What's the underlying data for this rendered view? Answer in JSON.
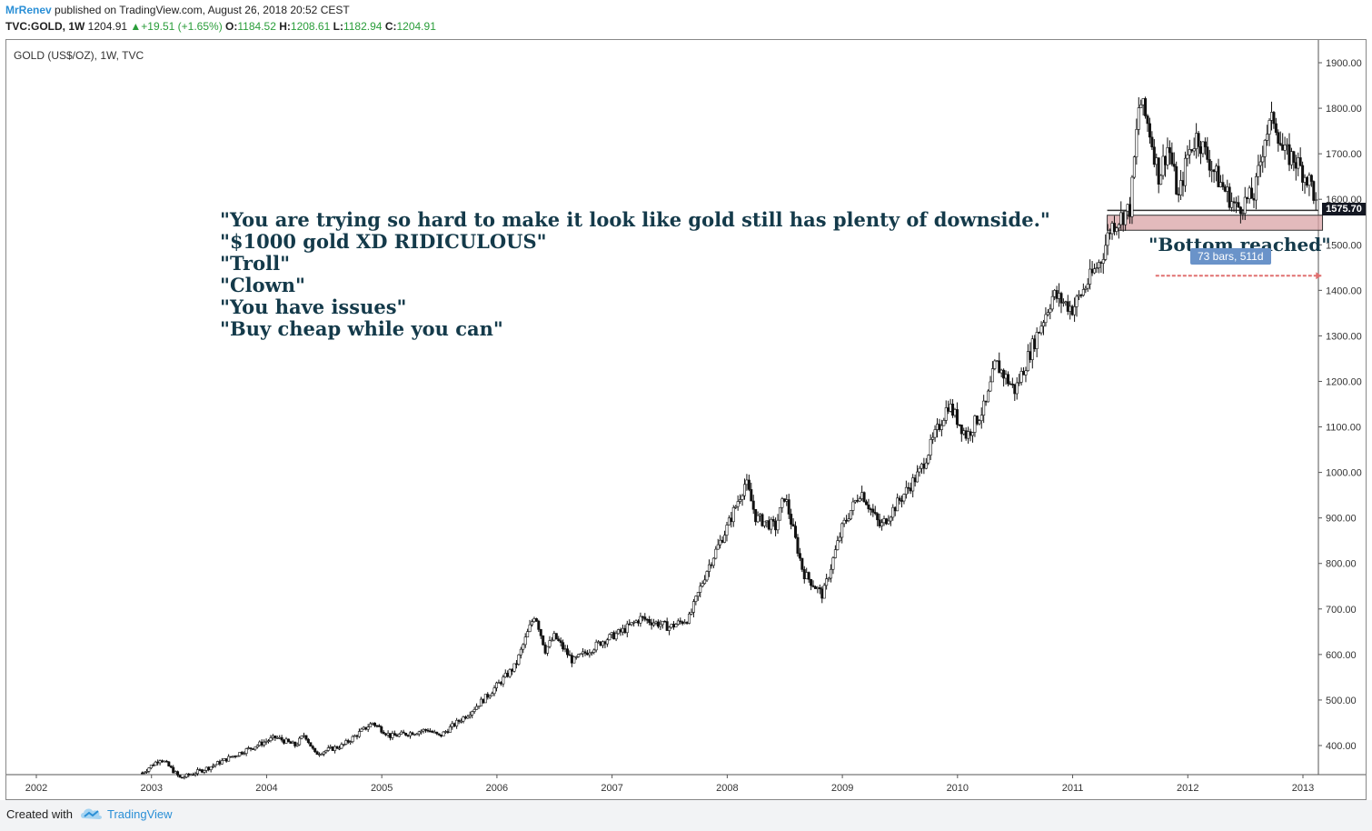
{
  "header": {
    "user": "MrRenev",
    "published": "published on TradingView.com, August 26, 2018 20:52 CEST",
    "symbol": "TVC:GOLD, 1W",
    "last": "1204.91",
    "change": "+19.51 (+1.65%)",
    "o_label": "O:",
    "o_value": "1184.52",
    "h_label": "H:",
    "h_value": "1208.61",
    "l_label": "L:",
    "l_value": "1182.94",
    "c_label": "C:",
    "c_value": "1204.91",
    "up_color": "#2a9d3a"
  },
  "chart_title": "GOLD (US$/OZ), 1W, TVC",
  "annotations": {
    "quotes": [
      "\"You are trying so hard to make it look like gold still has plenty of downside.\"",
      "\"$1000 gold XD RIDICULOUS\"",
      "\"Troll\"",
      "\"Clown\"",
      "\"You have issues\"",
      "\"Buy cheap while you can\""
    ],
    "bottom_note": "\"Bottom reached\"",
    "bars_range": "73 bars, 511d",
    "price_tag": "1575.70"
  },
  "footer": {
    "created_with": "Created with",
    "brand": "TradingView",
    "brand_icon": "tradingview-cloud-icon"
  },
  "chart_data": {
    "type": "candlestick",
    "title": "GOLD (US$/OZ), 1W, TVC",
    "x_ticks": [
      "2002",
      "2003",
      "2004",
      "2005",
      "2006",
      "2007",
      "2008",
      "2009",
      "2010",
      "2011",
      "2012",
      "2013"
    ],
    "y_ticks": [
      "400.00",
      "500.00",
      "600.00",
      "700.00",
      "800.00",
      "900.00",
      "1000.00",
      "1100.00",
      "1200.00",
      "1300.00",
      "1400.00",
      "1500.00",
      "1600.00",
      "1700.00",
      "1800.00",
      "1900.00"
    ],
    "xlim": [
      2002.0,
      2013.3
    ],
    "ylim": [
      320,
      1960
    ],
    "price_path": [
      [
        2002.92,
        340
      ],
      [
        2003.08,
        372
      ],
      [
        2003.16,
        352
      ],
      [
        2003.25,
        328
      ],
      [
        2003.5,
        352
      ],
      [
        2003.75,
        382
      ],
      [
        2004.0,
        410
      ],
      [
        2004.08,
        418
      ],
      [
        2004.25,
        400
      ],
      [
        2004.33,
        425
      ],
      [
        2004.42,
        382
      ],
      [
        2004.66,
        400
      ],
      [
        2004.92,
        450
      ],
      [
        2005.08,
        420
      ],
      [
        2005.4,
        435
      ],
      [
        2005.5,
        420
      ],
      [
        2005.75,
        470
      ],
      [
        2005.92,
        510
      ],
      [
        2006.16,
        575
      ],
      [
        2006.33,
        690
      ],
      [
        2006.42,
        610
      ],
      [
        2006.5,
        640
      ],
      [
        2006.66,
        585
      ],
      [
        2006.92,
        630
      ],
      [
        2007.08,
        650
      ],
      [
        2007.25,
        680
      ],
      [
        2007.5,
        660
      ],
      [
        2007.67,
        680
      ],
      [
        2007.83,
        790
      ],
      [
        2008.0,
        880
      ],
      [
        2008.16,
        980
      ],
      [
        2008.25,
        900
      ],
      [
        2008.42,
        880
      ],
      [
        2008.5,
        950
      ],
      [
        2008.66,
        780
      ],
      [
        2008.83,
        730
      ],
      [
        2009.0,
        880
      ],
      [
        2009.16,
        960
      ],
      [
        2009.33,
        880
      ],
      [
        2009.5,
        940
      ],
      [
        2009.67,
        1000
      ],
      [
        2009.92,
        1150
      ],
      [
        2010.08,
        1080
      ],
      [
        2010.25,
        1150
      ],
      [
        2010.33,
        1240
      ],
      [
        2010.5,
        1180
      ],
      [
        2010.67,
        1290
      ],
      [
        2010.83,
        1390
      ],
      [
        2011.0,
        1360
      ],
      [
        2011.25,
        1470
      ],
      [
        2011.33,
        1540
      ],
      [
        2011.5,
        1580
      ],
      [
        2011.58,
        1820
      ],
      [
        2011.66,
        1760
      ],
      [
        2011.75,
        1650
      ],
      [
        2011.83,
        1720
      ],
      [
        2011.92,
        1600
      ],
      [
        2012.0,
        1700
      ],
      [
        2012.08,
        1740
      ],
      [
        2012.25,
        1650
      ],
      [
        2012.42,
        1580
      ],
      [
        2012.58,
        1610
      ],
      [
        2012.67,
        1740
      ],
      [
        2012.75,
        1780
      ],
      [
        2012.83,
        1700
      ],
      [
        2012.92,
        1690
      ],
      [
        2013.0,
        1660
      ],
      [
        2013.08,
        1630
      ],
      [
        2013.12,
        1575.7
      ]
    ],
    "support_zone": {
      "x_start": 2011.3,
      "x_end": 2013.17,
      "y_low": 1532,
      "y_high": 1565
    },
    "date_range": {
      "x_start": 2011.72,
      "x_end": 2013.16,
      "y": 1432,
      "label": "73 bars, 511d"
    },
    "last_price": 1575.7
  }
}
